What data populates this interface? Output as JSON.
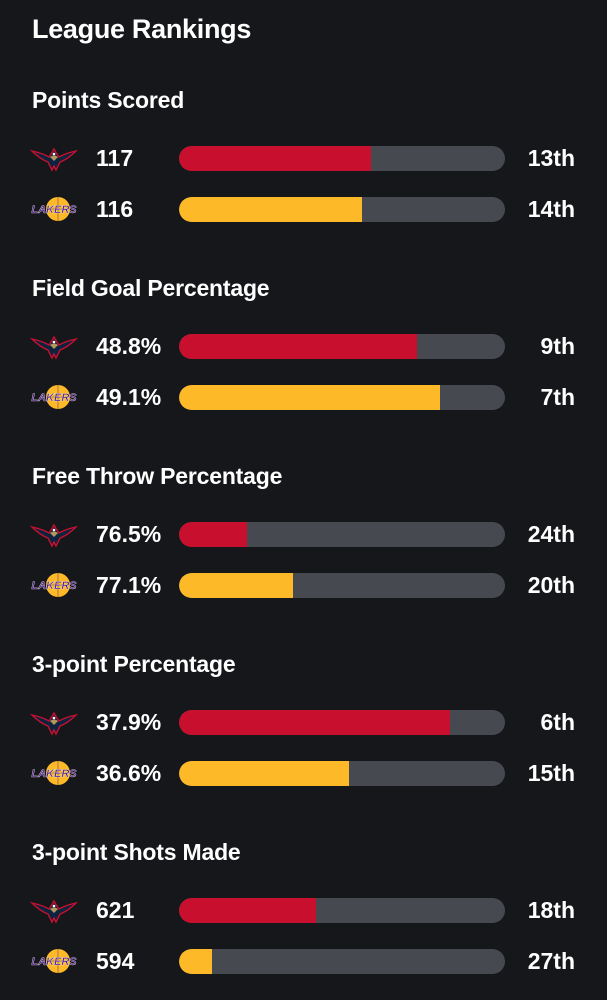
{
  "title": "League Rankings",
  "colors": {
    "background": "#15171a",
    "track": "#464a50",
    "pelicans": "#c8102e",
    "lakers": "#fdb927",
    "lakers_purple": "#552583"
  },
  "teams": {
    "pelicans": {
      "logo_icon": "pelicans-logo-icon"
    },
    "lakers": {
      "logo_icon": "lakers-logo-icon",
      "logo_text": "LAKERS"
    }
  },
  "sections": [
    {
      "title": "Points Scored",
      "rows": [
        {
          "team": "pelicans",
          "value": "117",
          "rank": "13th",
          "fill_pct": 59
        },
        {
          "team": "lakers",
          "value": "116",
          "rank": "14th",
          "fill_pct": 56
        }
      ]
    },
    {
      "title": "Field Goal Percentage",
      "rows": [
        {
          "team": "pelicans",
          "value": "48.8%",
          "rank": "9th",
          "fill_pct": 73
        },
        {
          "team": "lakers",
          "value": "49.1%",
          "rank": "7th",
          "fill_pct": 80
        }
      ]
    },
    {
      "title": "Free Throw Percentage",
      "rows": [
        {
          "team": "pelicans",
          "value": "76.5%",
          "rank": "24th",
          "fill_pct": 21
        },
        {
          "team": "lakers",
          "value": "77.1%",
          "rank": "20th",
          "fill_pct": 35
        }
      ]
    },
    {
      "title": "3-point Percentage",
      "rows": [
        {
          "team": "pelicans",
          "value": "37.9%",
          "rank": "6th",
          "fill_pct": 83
        },
        {
          "team": "lakers",
          "value": "36.6%",
          "rank": "15th",
          "fill_pct": 52
        }
      ]
    },
    {
      "title": "3-point Shots Made",
      "rows": [
        {
          "team": "pelicans",
          "value": "621",
          "rank": "18th",
          "fill_pct": 42
        },
        {
          "team": "lakers",
          "value": "594",
          "rank": "27th",
          "fill_pct": 10
        }
      ]
    }
  ]
}
